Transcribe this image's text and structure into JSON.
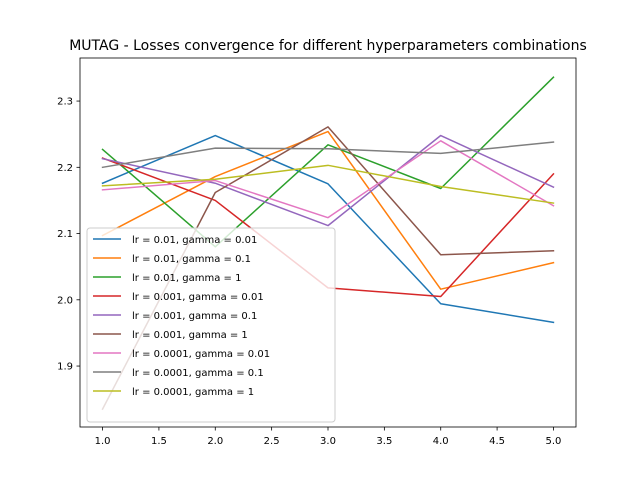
{
  "chart_data": {
    "type": "line",
    "title": "MUTAG - Losses convergence for different hyperparameters combinations",
    "xlabel": "",
    "ylabel": "",
    "x": [
      1,
      2,
      3,
      4,
      5
    ],
    "xlim": [
      0.8,
      5.2
    ],
    "ylim": [
      1.808,
      2.365
    ],
    "xticks": [
      "1.0",
      "1.5",
      "2.0",
      "2.5",
      "3.0",
      "3.5",
      "4.0",
      "4.5",
      "5.0"
    ],
    "yticks": [
      "1.9",
      "2.0",
      "2.1",
      "2.2",
      "2.3"
    ],
    "grid": false,
    "legend_position": "lower-left",
    "series": [
      {
        "name": "lr = 0.01, gamma = 0.01",
        "color": "#1f77b4",
        "values": [
          2.176,
          2.248,
          2.175,
          1.994,
          1.966
        ]
      },
      {
        "name": "lr = 0.01, gamma = 0.1",
        "color": "#ff7f0e",
        "values": [
          2.097,
          2.186,
          2.254,
          2.016,
          2.056
        ]
      },
      {
        "name": "lr = 0.01, gamma = 1",
        "color": "#2ca02c",
        "values": [
          2.227,
          2.08,
          2.234,
          2.168,
          2.336
        ]
      },
      {
        "name": "lr = 0.001, gamma = 0.01",
        "color": "#d62728",
        "values": [
          2.214,
          2.15,
          2.018,
          2.005,
          2.19
        ]
      },
      {
        "name": "lr = 0.001, gamma = 0.1",
        "color": "#9467bd",
        "values": [
          2.213,
          2.176,
          2.112,
          2.248,
          2.17
        ]
      },
      {
        "name": "lr = 0.001, gamma = 1",
        "color": "#8c564b",
        "values": [
          1.835,
          2.162,
          2.261,
          2.068,
          2.074
        ]
      },
      {
        "name": "lr = 0.0001, gamma = 0.01",
        "color": "#e377c2",
        "values": [
          2.166,
          2.18,
          2.124,
          2.24,
          2.142
        ]
      },
      {
        "name": "lr = 0.0001, gamma = 0.1",
        "color": "#7f7f7f",
        "values": [
          2.2,
          2.229,
          2.228,
          2.221,
          2.238
        ]
      },
      {
        "name": "lr = 0.0001, gamma = 1",
        "color": "#bcbd22",
        "values": [
          2.172,
          2.182,
          2.203,
          2.171,
          2.146
        ]
      }
    ]
  }
}
